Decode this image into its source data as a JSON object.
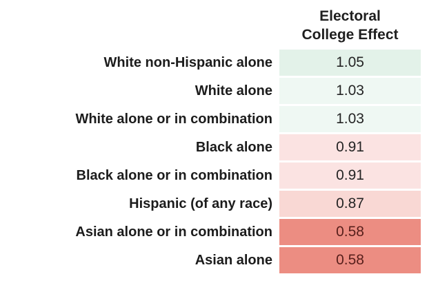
{
  "table": {
    "header": {
      "value_column_title": "Electoral\nCollege Effect"
    },
    "rows": [
      {
        "label": "White non-Hispanic alone",
        "value": "1.05",
        "bg": "#e3f2e9",
        "fg": "#242424"
      },
      {
        "label": "White alone",
        "value": "1.03",
        "bg": "#eff8f3",
        "fg": "#242424"
      },
      {
        "label": "White alone or in combination",
        "value": "1.03",
        "bg": "#eff8f3",
        "fg": "#242424"
      },
      {
        "label": "Black alone",
        "value": "0.91",
        "bg": "#fbe3e2",
        "fg": "#242424"
      },
      {
        "label": "Black alone or in combination",
        "value": "0.91",
        "bg": "#fbe3e2",
        "fg": "#242424"
      },
      {
        "label": "Hispanic (of any race)",
        "value": "0.87",
        "bg": "#f9d8d4",
        "fg": "#242424"
      },
      {
        "label": "Asian alone or in combination",
        "value": "0.58",
        "bg": "#ec8d82",
        "fg": "#571f1b"
      },
      {
        "label": "Asian alone",
        "value": "0.58",
        "bg": "#ec8d82",
        "fg": "#571f1b"
      }
    ]
  },
  "colors": {
    "positive_strong": "#e3f2e9",
    "positive_weak": "#eff8f3",
    "negative_weak": "#fbe3e2",
    "negative_mid": "#f9d8d4",
    "negative_strong": "#ec8d82",
    "page_background": "#ffffff"
  },
  "chart_data": {
    "type": "table",
    "title": "Electoral College Effect",
    "categories": [
      "White non-Hispanic alone",
      "White alone",
      "White alone or in combination",
      "Black alone",
      "Black alone or in combination",
      "Hispanic (of any race)",
      "Asian alone or in combination",
      "Asian alone"
    ],
    "values": [
      1.05,
      1.03,
      1.03,
      0.91,
      0.91,
      0.87,
      0.58,
      0.58
    ],
    "value_column_header": "Electoral College Effect",
    "color_encoding": "cell background is green for values above 1.00 and red for values below 1.00; intensity increases with distance from 1.00",
    "legend": "none",
    "grid": "off"
  }
}
